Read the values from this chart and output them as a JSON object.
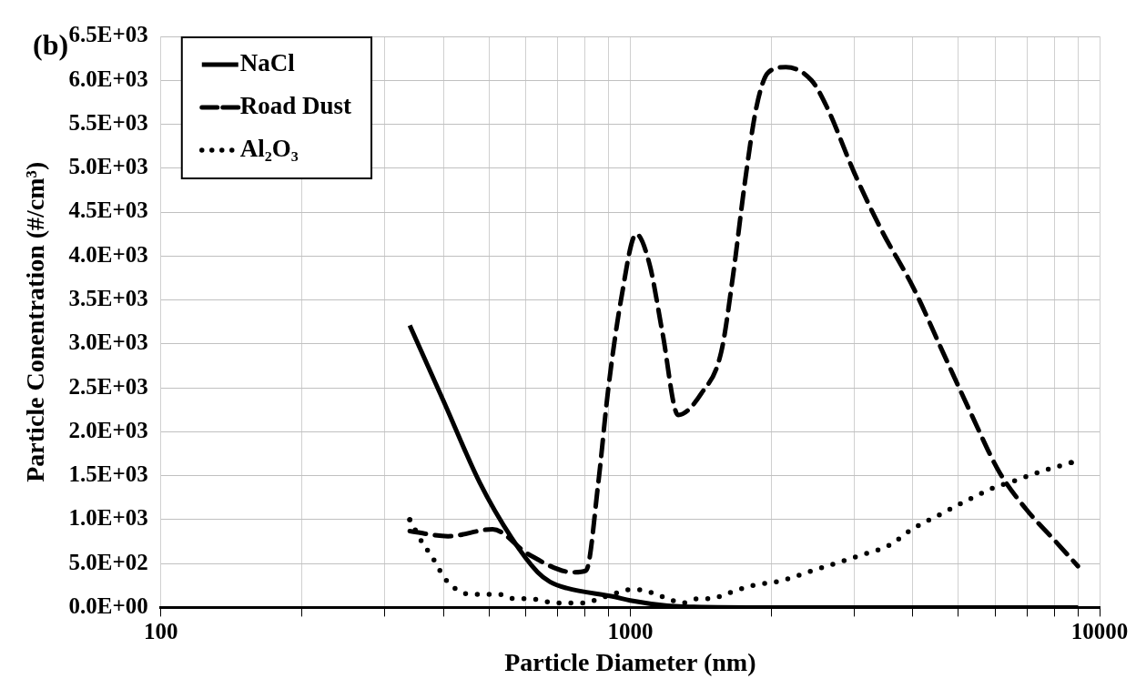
{
  "chart_data": {
    "type": "line",
    "title": "(b)",
    "xlabel": "Particle Diameter (nm)",
    "ylabel": "Particle Conentration (#/cm³)",
    "log": "x",
    "grid": true,
    "legend": "top left",
    "marker": "none",
    "xlim": [
      100,
      10000
    ],
    "xticks": [
      100,
      {
        "value": 200,
        "label": null
      },
      {
        "value": 300,
        "label": null
      },
      {
        "value": 400,
        "label": null
      },
      {
        "value": 500,
        "label": null
      },
      {
        "value": 600,
        "label": null
      },
      {
        "value": 700,
        "label": null
      },
      {
        "value": 800,
        "label": null
      },
      {
        "value": 900,
        "label": null
      },
      1000,
      {
        "value": 2000,
        "label": null
      },
      {
        "value": 3000,
        "label": null
      },
      {
        "value": 4000,
        "label": null
      },
      {
        "value": 5000,
        "label": null
      },
      {
        "value": 6000,
        "label": null
      },
      {
        "value": 7000,
        "label": null
      },
      {
        "value": 8000,
        "label": null
      },
      {
        "value": 9000,
        "label": null
      },
      10000
    ],
    "ylim": [
      0,
      6500
    ],
    "yticks": [
      {
        "value": 0,
        "label": "0.0E+00"
      },
      {
        "value": 500,
        "label": "5.0E+02"
      },
      {
        "value": 1000,
        "label": "1.0E+03"
      },
      {
        "value": 1500,
        "label": "1.5E+03"
      },
      {
        "value": 2000,
        "label": "2.0E+03"
      },
      {
        "value": 2500,
        "label": "2.5E+03"
      },
      {
        "value": 3000,
        "label": "3.0E+03"
      },
      {
        "value": 3500,
        "label": "3.5E+03"
      },
      {
        "value": 4000,
        "label": "4.0E+03"
      },
      {
        "value": 4500,
        "label": "4.5E+03"
      },
      {
        "value": 5000,
        "label": "5.0E+03"
      },
      {
        "value": 5500,
        "label": "5.5E+03"
      },
      {
        "value": 6000,
        "label": "6.0E+03"
      },
      {
        "value": 6500,
        "label": "6.5E+03"
      }
    ],
    "series": [
      {
        "name": "NaCl",
        "color": "#000000",
        "line_style": "solid",
        "x": [
          339,
          400,
          478,
          559,
          635,
          675,
          732,
          927,
          1000,
          1200,
          1300,
          2000,
          5000,
          9000
        ],
        "values": [
          3210,
          2350,
          1420,
          790,
          400,
          290,
          220,
          120,
          80,
          20,
          10,
          0,
          0,
          0
        ]
      },
      {
        "name": "Road Dust",
        "color": "#000000",
        "line_style": "dashed",
        "x": [
          339,
          409,
          509,
          605,
          757,
          805,
          855,
          897,
          957,
          1030,
          1100,
          1171,
          1265,
          1419,
          1563,
          1655,
          1755,
          1858,
          1968,
          2146,
          2433,
          2622,
          3000,
          3434,
          4010,
          4668,
          5340,
          6115,
          6995,
          7998,
          8990
        ],
        "values": [
          870,
          810,
          890,
          610,
          400,
          420,
          1420,
          2470,
          3520,
          4250,
          3900,
          3130,
          2190,
          2440,
          2910,
          3770,
          4840,
          5700,
          6090,
          6150,
          6000,
          5700,
          4950,
          4290,
          3640,
          2870,
          2190,
          1540,
          1110,
          770,
          470
        ]
      },
      {
        "name": "Al₂O₃",
        "color": "#000000",
        "line_style": "dotted",
        "x": [
          339,
          364,
          376,
          390,
          407,
          428,
          455,
          525,
          564,
          606,
          700,
          803,
          855,
          918,
          985,
          1059,
          1130,
          1205,
          1289,
          1393,
          1490,
          1593,
          1823,
          2085,
          2386,
          2730,
          3122,
          3542,
          4010,
          4541,
          5142,
          5875,
          6656,
          7534,
          8712
        ],
        "values": [
          1000,
          700,
          600,
          450,
          300,
          200,
          150,
          150,
          100,
          100,
          50,
          50,
          100,
          150,
          200,
          200,
          150,
          100,
          50,
          100,
          100,
          150,
          250,
          300,
          400,
          500,
          600,
          700,
          900,
          1050,
          1200,
          1350,
          1450,
          1550,
          1650
        ]
      }
    ]
  }
}
